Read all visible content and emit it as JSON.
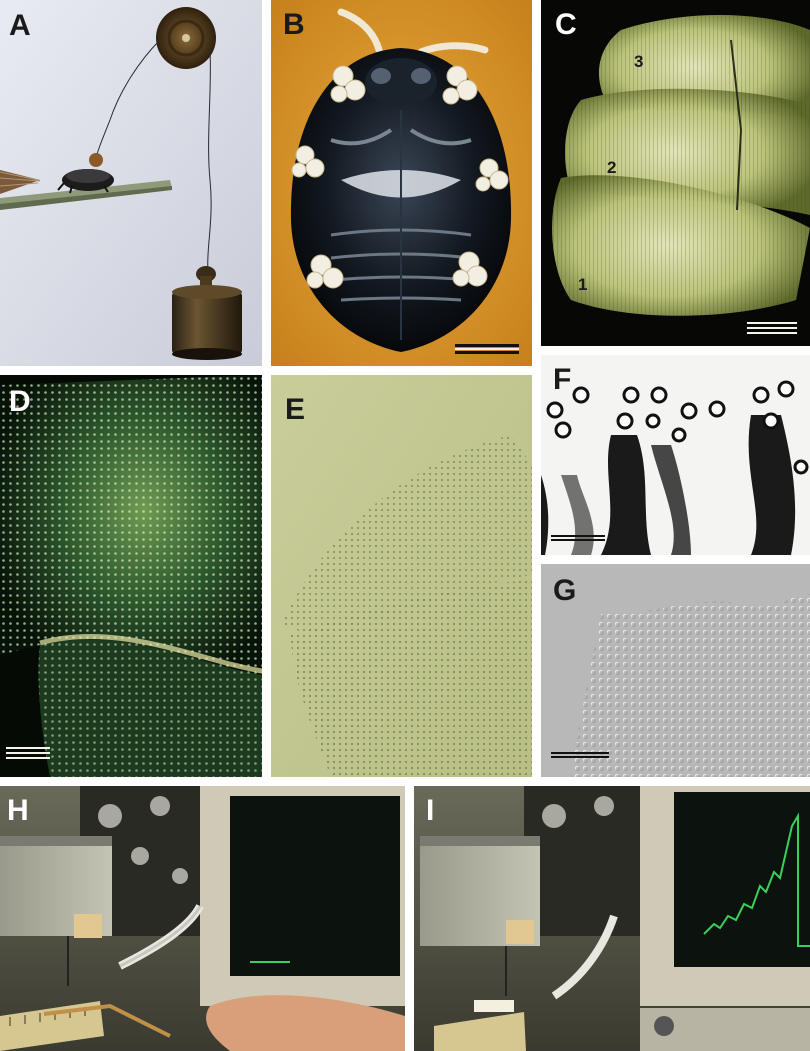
{
  "panels": {
    "A": {
      "label": "A"
    },
    "B": {
      "label": "B"
    },
    "C": {
      "label": "C",
      "segments": [
        "1",
        "2",
        "3"
      ]
    },
    "D": {
      "label": "D"
    },
    "E": {
      "label": "E"
    },
    "F": {
      "label": "F"
    },
    "G": {
      "label": "G"
    },
    "H": {
      "label": "H"
    },
    "I": {
      "label": "I"
    }
  }
}
